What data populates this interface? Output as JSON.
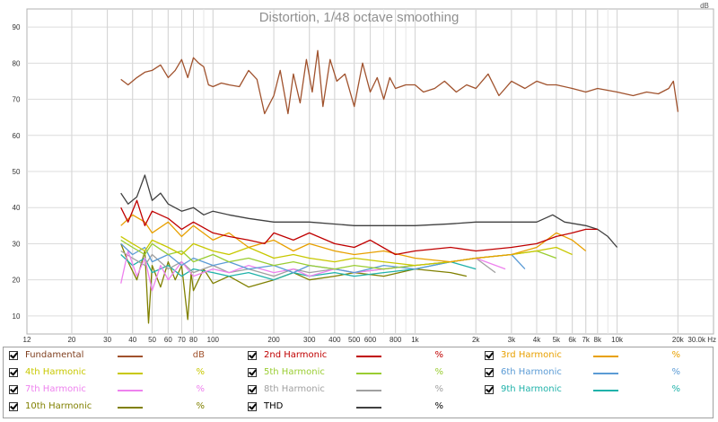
{
  "chart_data": {
    "type": "line",
    "title": "Distortion, 1/48 octave smoothing",
    "ylabel": "dB",
    "xunit": "Hz",
    "xscale": "log",
    "xlim": [
      12,
      30000
    ],
    "ylim": [
      5,
      95
    ],
    "grid": true,
    "yticks": [
      "10",
      "20",
      "30",
      "40",
      "50",
      "60",
      "70",
      "80",
      "90"
    ],
    "xticks": [
      "12",
      "20",
      "30",
      "40",
      "50",
      "60",
      "70",
      "80",
      "100",
      "200",
      "300",
      "400",
      "500",
      "600",
      "800",
      "1k",
      "2k",
      "3k",
      "4k",
      "5k",
      "6k",
      "7k",
      "8k",
      "10k",
      "20k",
      "30.0k Hz"
    ],
    "series": [
      {
        "name": "Fundamental",
        "unit": "dB",
        "color": "#a0522d",
        "x": [
          35,
          38,
          42,
          46,
          50,
          55,
          60,
          65,
          70,
          75,
          80,
          85,
          90,
          95,
          100,
          110,
          120,
          135,
          150,
          165,
          180,
          200,
          215,
          235,
          250,
          270,
          290,
          310,
          330,
          350,
          380,
          410,
          450,
          500,
          550,
          600,
          650,
          700,
          750,
          800,
          900,
          1000,
          1100,
          1250,
          1400,
          1600,
          1800,
          2000,
          2300,
          2600,
          3000,
          3500,
          4000,
          4500,
          5000,
          6000,
          7000,
          8000,
          10000,
          12000,
          14000,
          16000,
          18000,
          19000,
          20000
        ],
        "y": [
          75.5,
          74,
          76,
          77.5,
          78,
          79.5,
          76,
          78,
          81,
          76,
          81.5,
          80,
          79,
          74,
          73.5,
          74.5,
          74,
          73.5,
          78,
          75.5,
          66,
          71,
          78,
          66,
          77,
          69,
          81,
          72,
          83.5,
          68,
          81,
          75,
          77,
          68,
          80,
          72,
          76,
          70,
          76,
          73,
          74,
          74,
          72,
          73,
          75,
          72,
          74,
          73,
          77,
          71,
          75,
          73,
          75,
          74,
          74,
          73,
          72,
          73,
          72,
          71,
          72,
          71.5,
          73,
          75,
          66.5
        ]
      },
      {
        "name": "2nd Harmonic",
        "unit": "%",
        "color": "#c00000",
        "x": [
          35,
          38,
          42,
          46,
          50,
          60,
          70,
          80,
          100,
          120,
          150,
          180,
          200,
          250,
          300,
          400,
          500,
          600,
          800,
          1000,
          1500,
          2000,
          3000,
          4000,
          5000,
          6000,
          7000,
          8000
        ],
        "y": [
          40,
          36,
          42,
          35,
          39,
          37,
          34,
          36,
          33,
          32,
          31,
          30,
          33,
          31,
          33,
          30,
          29,
          31,
          27,
          28,
          29,
          28,
          29,
          30,
          32,
          33,
          34,
          34
        ]
      },
      {
        "name": "3rd Harmonic",
        "unit": "%",
        "color": "#e8a000",
        "x": [
          35,
          40,
          46,
          50,
          60,
          70,
          80,
          100,
          120,
          150,
          200,
          250,
          300,
          400,
          500,
          700,
          1000,
          1500,
          2000,
          3000,
          4000,
          5000,
          6000,
          7000
        ],
        "y": [
          35,
          38,
          36,
          33,
          36,
          32,
          35,
          31,
          33,
          29,
          31,
          28,
          30,
          28,
          27,
          28,
          26,
          25,
          26,
          27,
          29,
          33,
          31,
          28
        ]
      },
      {
        "name": "4th Harmonic",
        "unit": "%",
        "color": "#c8c800",
        "x": [
          35,
          40,
          46,
          50,
          60,
          70,
          80,
          100,
          120,
          150,
          200,
          250,
          300,
          400,
          500,
          700,
          1000,
          1500,
          2000,
          3000,
          4000,
          5000,
          6000
        ],
        "y": [
          32,
          30,
          28,
          31,
          29,
          27,
          30,
          28,
          27,
          29,
          26,
          27,
          26,
          25,
          26,
          25,
          24,
          25,
          26,
          27,
          28,
          29,
          27
        ]
      },
      {
        "name": "5th Harmonic",
        "unit": "%",
        "color": "#9acd32",
        "x": [
          35,
          40,
          46,
          50,
          60,
          70,
          80,
          100,
          120,
          150,
          200,
          250,
          300,
          400,
          500,
          700,
          1000,
          1500,
          2000,
          3000,
          4000,
          5000
        ],
        "y": [
          31,
          29,
          27,
          30,
          27,
          28,
          25,
          27,
          25,
          26,
          24,
          25,
          24,
          23,
          24,
          23,
          24,
          25,
          26,
          27,
          28,
          26
        ]
      },
      {
        "name": "6th Harmonic",
        "unit": "%",
        "color": "#5b9bd5",
        "x": [
          35,
          40,
          46,
          50,
          60,
          70,
          80,
          100,
          120,
          150,
          200,
          250,
          300,
          400,
          500,
          700,
          1000,
          1500,
          2000,
          3000,
          3500
        ],
        "y": [
          30,
          27,
          29,
          25,
          27,
          24,
          26,
          24,
          25,
          23,
          24,
          22,
          24,
          23,
          22,
          24,
          23,
          25,
          26,
          27,
          23
        ]
      },
      {
        "name": "7th Harmonic",
        "unit": "%",
        "color": "#ee82ee",
        "x": [
          35,
          38,
          42,
          46,
          50,
          55,
          60,
          70,
          80,
          100,
          120,
          150,
          200,
          250,
          300,
          400,
          500,
          700,
          1000,
          1500,
          2000,
          2800
        ],
        "y": [
          19,
          28,
          21,
          26,
          17,
          24,
          20,
          25,
          21,
          23,
          22,
          24,
          22,
          23,
          21,
          23,
          22,
          23,
          24,
          25,
          26,
          23
        ]
      },
      {
        "name": "8th Harmonic",
        "unit": "%",
        "color": "#a0a0a0",
        "x": [
          35,
          40,
          46,
          50,
          60,
          70,
          80,
          100,
          120,
          150,
          200,
          250,
          300,
          400,
          500,
          700,
          1000,
          1500,
          2000,
          2500
        ],
        "y": [
          28,
          26,
          24,
          27,
          23,
          25,
          22,
          24,
          22,
          23,
          21,
          23,
          22,
          23,
          22,
          23,
          24,
          25,
          26,
          22
        ]
      },
      {
        "name": "9th Harmonic",
        "unit": "%",
        "color": "#20b2aa",
        "x": [
          35,
          40,
          46,
          50,
          60,
          70,
          80,
          100,
          120,
          150,
          200,
          250,
          300,
          400,
          500,
          700,
          1000,
          1500,
          2000
        ],
        "y": [
          27,
          24,
          26,
          22,
          24,
          21,
          23,
          22,
          21,
          22,
          20,
          22,
          21,
          22,
          21,
          22,
          23,
          25,
          23
        ]
      },
      {
        "name": "10th Harmonic",
        "unit": "%",
        "color": "#808000",
        "x": [
          35,
          38,
          42,
          46,
          48,
          50,
          55,
          60,
          65,
          70,
          75,
          78,
          80,
          90,
          100,
          120,
          150,
          200,
          250,
          300,
          400,
          500,
          700,
          1000,
          1500,
          1800
        ],
        "y": [
          30,
          25,
          20,
          28,
          8,
          24,
          18,
          25,
          20,
          24,
          9,
          22,
          17,
          23,
          19,
          21,
          18,
          20,
          22,
          20,
          21,
          22,
          21,
          23,
          22,
          21
        ]
      },
      {
        "name": "THD",
        "unit": "%",
        "color": "#404040",
        "x": [
          35,
          38,
          42,
          46,
          50,
          55,
          60,
          70,
          80,
          90,
          100,
          120,
          150,
          200,
          300,
          500,
          800,
          1000,
          1500,
          2000,
          3000,
          4000,
          4800,
          5500,
          7000,
          8000,
          9000,
          10000
        ],
        "y": [
          44,
          41,
          43,
          49,
          42,
          44,
          41,
          39,
          40,
          38,
          39,
          38,
          37,
          36,
          36,
          35,
          35,
          35,
          35.5,
          36,
          36,
          36,
          38,
          36,
          35,
          34,
          32,
          29
        ]
      }
    ]
  },
  "legend": {
    "checkbox_state": "checked",
    "items": [
      {
        "label": "Fundamental",
        "unit": "dB",
        "color": "#a0522d",
        "text_color": "#804020"
      },
      {
        "label": "2nd Harmonic",
        "unit": "%",
        "color": "#c00000",
        "text_color": "#c00000"
      },
      {
        "label": "3rd Harmonic",
        "unit": "%",
        "color": "#e8a000",
        "text_color": "#e8a000"
      },
      {
        "label": "4th Harmonic",
        "unit": "%",
        "color": "#c8c800",
        "text_color": "#c8c800"
      },
      {
        "label": "5th Harmonic",
        "unit": "%",
        "color": "#9acd32",
        "text_color": "#9acd32"
      },
      {
        "label": "6th Harmonic",
        "unit": "%",
        "color": "#5b9bd5",
        "text_color": "#5b9bd5"
      },
      {
        "label": "7th Harmonic",
        "unit": "%",
        "color": "#ee82ee",
        "text_color": "#ee82ee"
      },
      {
        "label": "8th Harmonic",
        "unit": "%",
        "color": "#a0a0a0",
        "text_color": "#a0a0a0"
      },
      {
        "label": "9th Harmonic",
        "unit": "%",
        "color": "#20b2aa",
        "text_color": "#20b2aa"
      },
      {
        "label": "10th Harmonic",
        "unit": "%",
        "color": "#808000",
        "text_color": "#808000"
      },
      {
        "label": "THD",
        "unit": "%",
        "color": "#404040",
        "text_color": "#000000"
      }
    ]
  }
}
